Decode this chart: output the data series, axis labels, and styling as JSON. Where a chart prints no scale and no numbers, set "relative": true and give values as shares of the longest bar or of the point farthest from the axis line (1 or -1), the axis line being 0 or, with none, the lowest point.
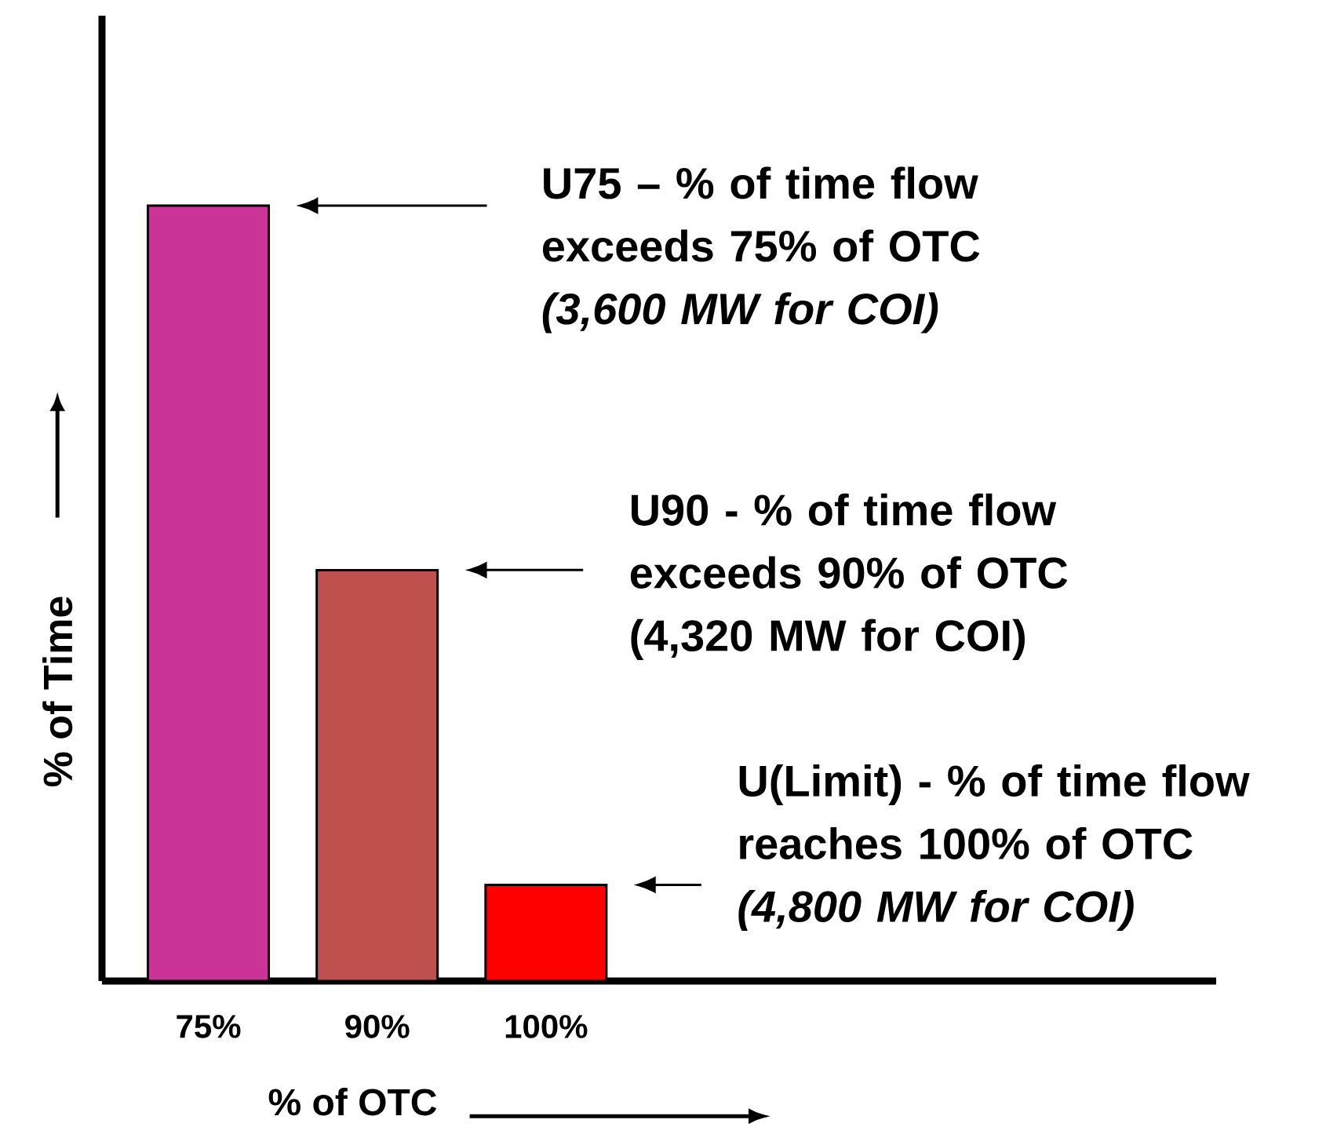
{
  "chart_data": {
    "type": "bar",
    "relative": true,
    "xlabel": "% of OTC",
    "ylabel": "% of Time",
    "categories": [
      "75%",
      "90%",
      "100%"
    ],
    "values": [
      1,
      0.53,
      0.124
    ],
    "colors": [
      "#cc3399",
      "#c0504d",
      "#ff0000"
    ],
    "annotations": [
      "U75 – % of time flow exceeds 75% of OTC *(3,600 MW for COI)*",
      "U90 - % of time flow exceeds 90% of OTC (4,320 MW for COI)",
      "U(Limit) - % of time flow reaches 100%  of OTC *(4,800 MW for COI)*"
    ]
  }
}
